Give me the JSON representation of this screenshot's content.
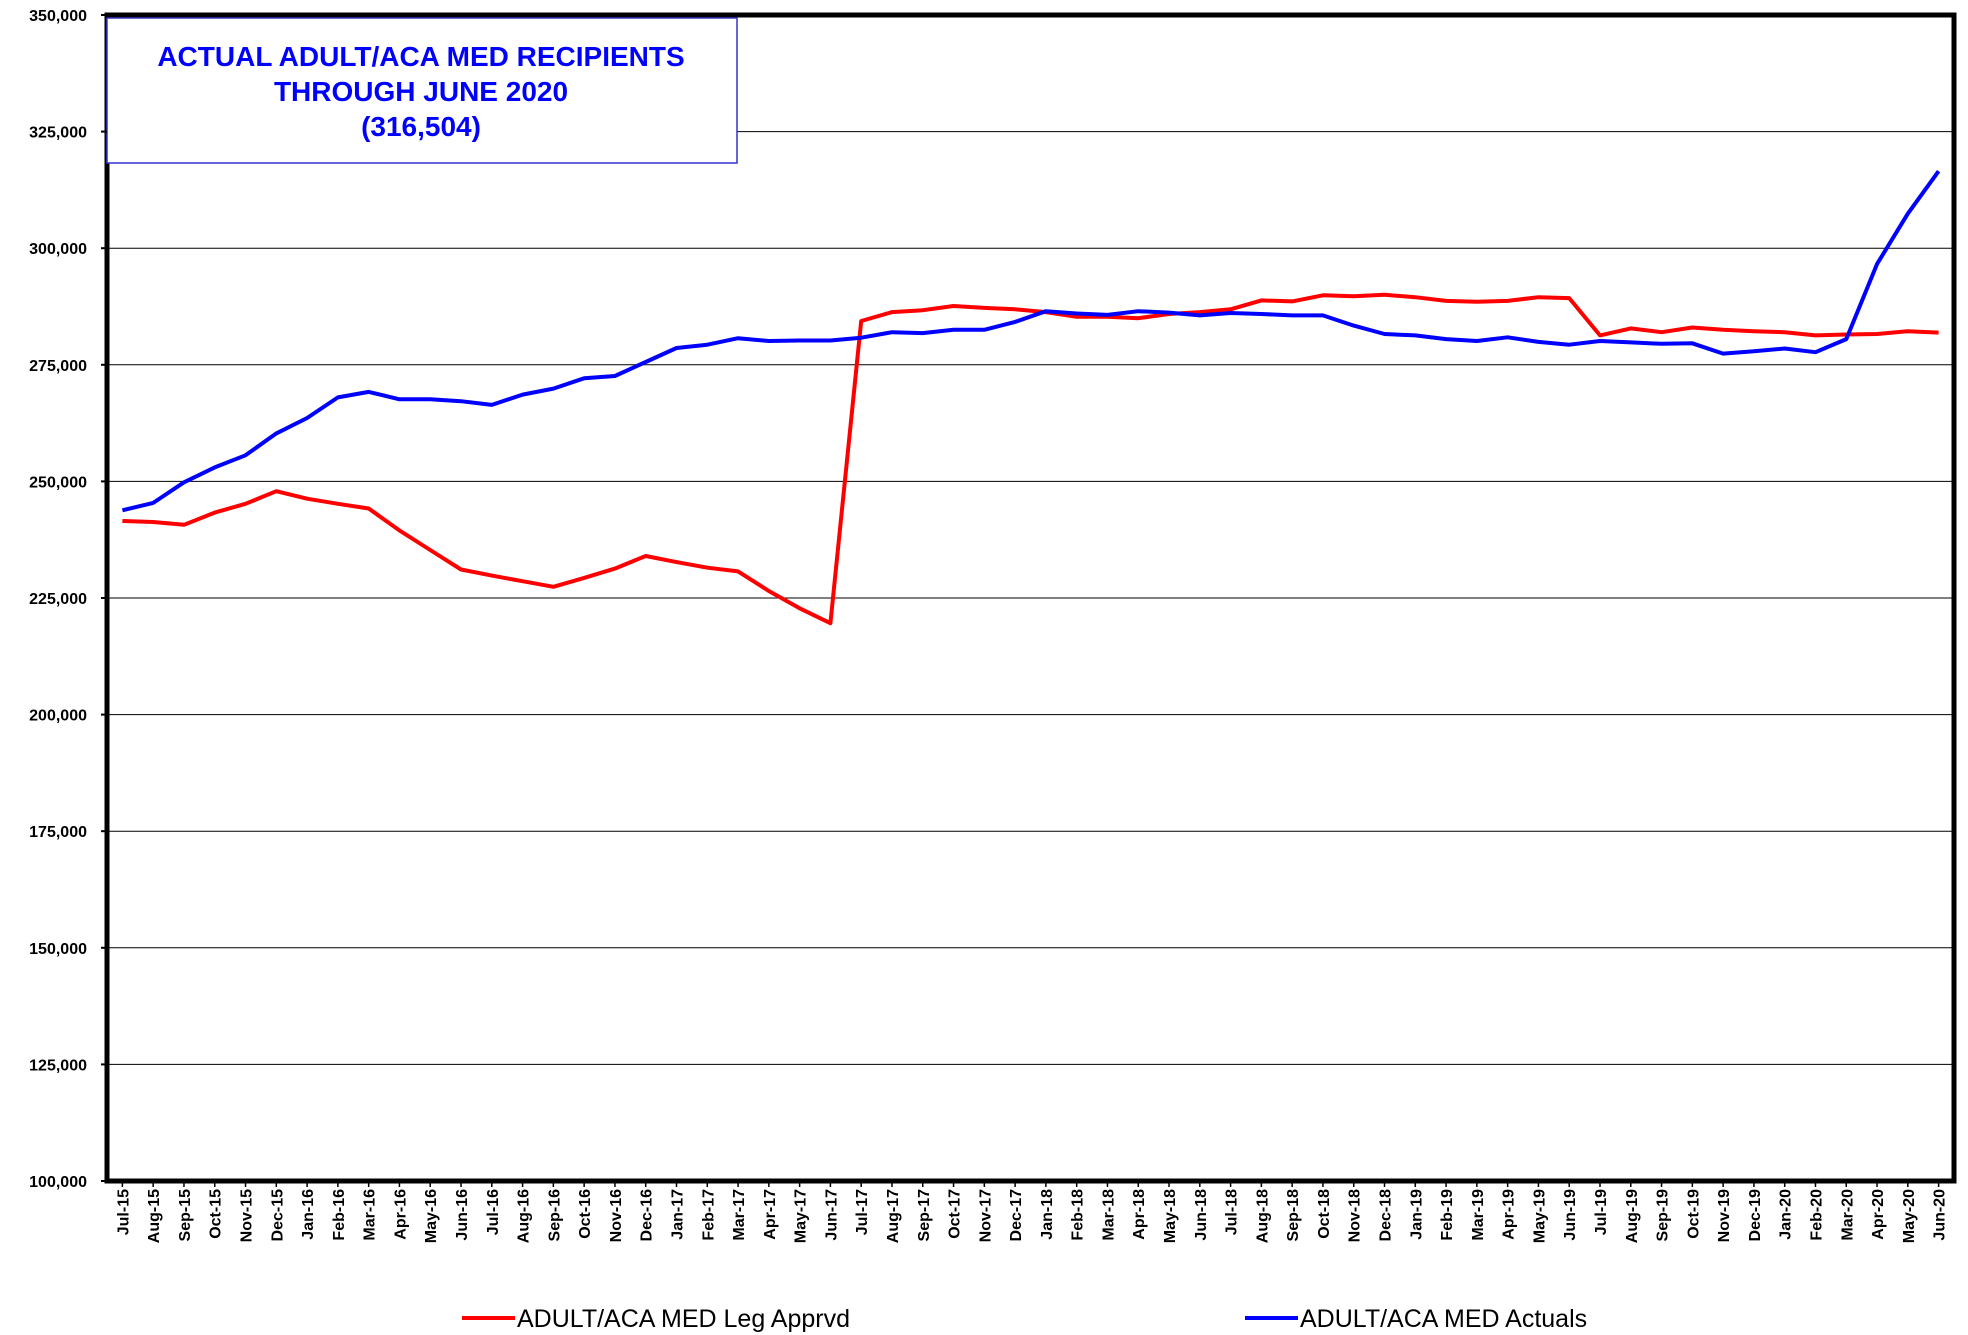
{
  "chart_data": {
    "type": "line",
    "title": [
      "ACTUAL ADULT/ACA MED RECIPIENTS",
      "THROUGH JUNE 2020",
      "(316,504)"
    ],
    "categories": [
      "Jul-15",
      "Aug-15",
      "Sep-15",
      "Oct-15",
      "Nov-15",
      "Dec-15",
      "Jan-16",
      "Feb-16",
      "Mar-16",
      "Apr-16",
      "May-16",
      "Jun-16",
      "Jul-16",
      "Aug-16",
      "Sep-16",
      "Oct-16",
      "Nov-16",
      "Dec-16",
      "Jan-17",
      "Feb-17",
      "Mar-17",
      "Apr-17",
      "May-17",
      "Jun-17",
      "Jul-17",
      "Aug-17",
      "Sep-17",
      "Oct-17",
      "Nov-17",
      "Dec-17",
      "Jan-18",
      "Feb-18",
      "Mar-18",
      "Apr-18",
      "May-18",
      "Jun-18",
      "Jul-18",
      "Aug-18",
      "Sep-18",
      "Oct-18",
      "Nov-18",
      "Dec-18",
      "Jan-19",
      "Feb-19",
      "Mar-19",
      "Apr-19",
      "May-19",
      "Jun-19",
      "Jul-19",
      "Aug-19",
      "Sep-19",
      "Oct-19",
      "Nov-19",
      "Dec-19",
      "Jan-20",
      "Feb-20",
      "Mar-20",
      "Apr-20",
      "May-20",
      "Jun-20"
    ],
    "series": [
      {
        "name": "ADULT/ACA MED Leg Apprvd",
        "color": "#ff0000",
        "values": [
          241500,
          241300,
          240700,
          243300,
          245200,
          247900,
          246300,
          245200,
          244200,
          239500,
          235300,
          231100,
          229800,
          228600,
          227400,
          229300,
          231300,
          234000,
          232700,
          231500,
          230700,
          226500,
          222800,
          219600,
          284400,
          286300,
          286700,
          287600,
          287200,
          286900,
          286300,
          285300,
          285300,
          285000,
          285900,
          286300,
          286900,
          288800,
          288600,
          289900,
          289700,
          290000,
          289500,
          288700,
          288500,
          288700,
          289500,
          289300,
          281300,
          282800,
          282000,
          283000,
          282500,
          282200,
          282000,
          281300,
          281500,
          281600,
          282200,
          281900
        ]
      },
      {
        "name": "ADULT/ACA MED Actuals",
        "color": "#0000ff",
        "values": [
          243800,
          245400,
          249800,
          253000,
          255600,
          260300,
          263600,
          268000,
          269200,
          267600,
          267600,
          267200,
          266400,
          268600,
          269900,
          272100,
          272600,
          275600,
          278600,
          279300,
          280700,
          280100,
          280200,
          280200,
          280800,
          282000,
          281800,
          282500,
          282500,
          284200,
          286500,
          286000,
          285700,
          286500,
          286200,
          285600,
          286100,
          285900,
          285600,
          285600,
          283400,
          281600,
          281300,
          280500,
          280100,
          280900,
          279900,
          279300,
          280100,
          279800,
          279500,
          279600,
          277400,
          277900,
          278500,
          277700,
          280500,
          296600,
          307400,
          316504
        ]
      }
    ],
    "ylim": [
      100000,
      350000
    ],
    "yticks": [
      {
        "value": 100000,
        "label": "100,000"
      },
      {
        "value": 125000,
        "label": "125,000"
      },
      {
        "value": 150000,
        "label": "150,000"
      },
      {
        "value": 175000,
        "label": "175,000"
      },
      {
        "value": 200000,
        "label": "200,000"
      },
      {
        "value": 225000,
        "label": "225,000"
      },
      {
        "value": 250000,
        "label": "250,000"
      },
      {
        "value": 275000,
        "label": "275,000"
      },
      {
        "value": 300000,
        "label": "300,000"
      },
      {
        "value": 325000,
        "label": "325,000"
      },
      {
        "value": 350000,
        "label": "350,000"
      }
    ],
    "grid": true
  }
}
